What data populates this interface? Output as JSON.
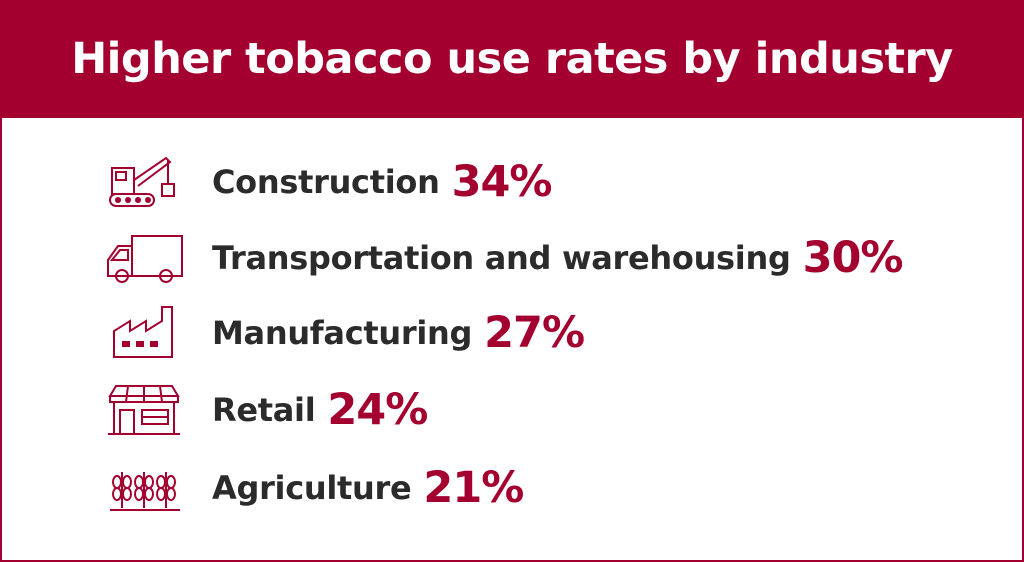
{
  "title": "Higher tobacco use rates by industry",
  "items": [
    {
      "label": "Construction",
      "value": "34%"
    },
    {
      "label": "Transportation and warehousing",
      "value": "30%"
    },
    {
      "label": "Manufacturing",
      "value": "27%"
    },
    {
      "label": "Retail",
      "value": "24%"
    },
    {
      "label": "Agriculture",
      "value": "21%"
    }
  ]
}
